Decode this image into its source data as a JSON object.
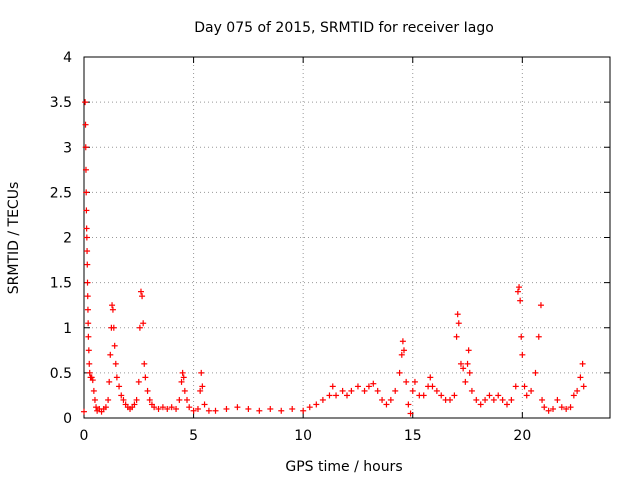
{
  "chart_data": {
    "type": "scatter",
    "title": "Day 075 of 2015, SRMTID for receiver Iago",
    "xlabel": "GPS time / hours",
    "ylabel": "SRMTID / TECUs",
    "xlim": [
      0,
      24
    ],
    "ylim": [
      0,
      4
    ],
    "x_ticks": [
      0,
      5,
      10,
      15,
      20
    ],
    "x_tick_labels": [
      "0",
      "5",
      "10",
      "15",
      "20"
    ],
    "y_ticks": [
      0,
      0.5,
      1,
      1.5,
      2,
      2.5,
      3,
      3.5,
      4
    ],
    "y_tick_labels": [
      "0",
      "0.5",
      "1",
      "1.5",
      "2",
      "2.5",
      "3",
      "3.5",
      "4"
    ],
    "grid": true,
    "marker": "+",
    "color": "#ff0000",
    "series": [
      {
        "name": "SRMTID",
        "points": [
          [
            0.0,
            0.07
          ],
          [
            0.05,
            3.5
          ],
          [
            0.07,
            3.25
          ],
          [
            0.08,
            3.0
          ],
          [
            0.09,
            2.75
          ],
          [
            0.1,
            2.5
          ],
          [
            0.11,
            2.3
          ],
          [
            0.12,
            2.1
          ],
          [
            0.13,
            2.0
          ],
          [
            0.14,
            1.85
          ],
          [
            0.15,
            1.7
          ],
          [
            0.16,
            1.5
          ],
          [
            0.17,
            1.35
          ],
          [
            0.18,
            1.2
          ],
          [
            0.19,
            1.05
          ],
          [
            0.2,
            0.9
          ],
          [
            0.22,
            0.75
          ],
          [
            0.24,
            0.6
          ],
          [
            0.26,
            0.5
          ],
          [
            0.3,
            0.45
          ],
          [
            0.35,
            0.45
          ],
          [
            0.4,
            0.42
          ],
          [
            0.45,
            0.3
          ],
          [
            0.5,
            0.2
          ],
          [
            0.55,
            0.12
          ],
          [
            0.6,
            0.08
          ],
          [
            0.7,
            0.1
          ],
          [
            0.8,
            0.07
          ],
          [
            0.9,
            0.1
          ],
          [
            1.0,
            0.12
          ],
          [
            1.1,
            0.2
          ],
          [
            1.15,
            0.4
          ],
          [
            1.2,
            0.7
          ],
          [
            1.25,
            1.0
          ],
          [
            1.28,
            1.25
          ],
          [
            1.32,
            1.2
          ],
          [
            1.36,
            1.0
          ],
          [
            1.4,
            0.8
          ],
          [
            1.45,
            0.6
          ],
          [
            1.5,
            0.45
          ],
          [
            1.6,
            0.35
          ],
          [
            1.7,
            0.25
          ],
          [
            1.8,
            0.2
          ],
          [
            1.9,
            0.15
          ],
          [
            2.0,
            0.12
          ],
          [
            2.1,
            0.1
          ],
          [
            2.2,
            0.12
          ],
          [
            2.3,
            0.15
          ],
          [
            2.4,
            0.2
          ],
          [
            2.5,
            0.4
          ],
          [
            2.55,
            1.0
          ],
          [
            2.6,
            1.4
          ],
          [
            2.65,
            1.35
          ],
          [
            2.7,
            1.05
          ],
          [
            2.75,
            0.6
          ],
          [
            2.8,
            0.45
          ],
          [
            2.9,
            0.3
          ],
          [
            3.0,
            0.2
          ],
          [
            3.1,
            0.15
          ],
          [
            3.2,
            0.12
          ],
          [
            3.4,
            0.1
          ],
          [
            3.6,
            0.12
          ],
          [
            3.8,
            0.1
          ],
          [
            4.0,
            0.12
          ],
          [
            4.2,
            0.1
          ],
          [
            4.35,
            0.2
          ],
          [
            4.45,
            0.4
          ],
          [
            4.5,
            0.5
          ],
          [
            4.55,
            0.45
          ],
          [
            4.6,
            0.3
          ],
          [
            4.7,
            0.2
          ],
          [
            4.8,
            0.12
          ],
          [
            5.0,
            0.08
          ],
          [
            5.2,
            0.1
          ],
          [
            5.3,
            0.3
          ],
          [
            5.35,
            0.5
          ],
          [
            5.4,
            0.35
          ],
          [
            5.5,
            0.15
          ],
          [
            5.7,
            0.08
          ],
          [
            6.0,
            0.08
          ],
          [
            6.5,
            0.1
          ],
          [
            7.0,
            0.12
          ],
          [
            7.5,
            0.1
          ],
          [
            8.0,
            0.08
          ],
          [
            8.5,
            0.1
          ],
          [
            9.0,
            0.08
          ],
          [
            9.5,
            0.1
          ],
          [
            10.0,
            0.08
          ],
          [
            10.3,
            0.12
          ],
          [
            10.6,
            0.15
          ],
          [
            10.9,
            0.2
          ],
          [
            11.2,
            0.25
          ],
          [
            11.35,
            0.35
          ],
          [
            11.5,
            0.25
          ],
          [
            11.8,
            0.3
          ],
          [
            12.0,
            0.25
          ],
          [
            12.2,
            0.3
          ],
          [
            12.5,
            0.35
          ],
          [
            12.8,
            0.3
          ],
          [
            13.0,
            0.35
          ],
          [
            13.2,
            0.38
          ],
          [
            13.4,
            0.3
          ],
          [
            13.6,
            0.2
          ],
          [
            13.8,
            0.15
          ],
          [
            14.0,
            0.2
          ],
          [
            14.2,
            0.3
          ],
          [
            14.4,
            0.5
          ],
          [
            14.5,
            0.7
          ],
          [
            14.55,
            0.85
          ],
          [
            14.6,
            0.75
          ],
          [
            14.7,
            0.4
          ],
          [
            14.8,
            0.15
          ],
          [
            14.9,
            0.05
          ],
          [
            15.0,
            0.3
          ],
          [
            15.1,
            0.4
          ],
          [
            15.3,
            0.25
          ],
          [
            15.5,
            0.25
          ],
          [
            15.7,
            0.35
          ],
          [
            15.8,
            0.45
          ],
          [
            15.9,
            0.35
          ],
          [
            16.1,
            0.3
          ],
          [
            16.3,
            0.25
          ],
          [
            16.5,
            0.2
          ],
          [
            16.7,
            0.2
          ],
          [
            16.9,
            0.25
          ],
          [
            17.0,
            0.9
          ],
          [
            17.05,
            1.15
          ],
          [
            17.1,
            1.05
          ],
          [
            17.2,
            0.6
          ],
          [
            17.3,
            0.55
          ],
          [
            17.4,
            0.4
          ],
          [
            17.5,
            0.6
          ],
          [
            17.55,
            0.75
          ],
          [
            17.6,
            0.5
          ],
          [
            17.7,
            0.3
          ],
          [
            17.9,
            0.2
          ],
          [
            18.1,
            0.15
          ],
          [
            18.3,
            0.2
          ],
          [
            18.5,
            0.25
          ],
          [
            18.7,
            0.2
          ],
          [
            18.9,
            0.25
          ],
          [
            19.1,
            0.2
          ],
          [
            19.3,
            0.15
          ],
          [
            19.5,
            0.2
          ],
          [
            19.7,
            0.35
          ],
          [
            19.8,
            1.4
          ],
          [
            19.85,
            1.45
          ],
          [
            19.9,
            1.3
          ],
          [
            19.95,
            0.9
          ],
          [
            20.0,
            0.7
          ],
          [
            20.1,
            0.35
          ],
          [
            20.2,
            0.25
          ],
          [
            20.4,
            0.3
          ],
          [
            20.6,
            0.5
          ],
          [
            20.75,
            0.9
          ],
          [
            20.85,
            1.25
          ],
          [
            20.9,
            0.2
          ],
          [
            21.0,
            0.12
          ],
          [
            21.2,
            0.08
          ],
          [
            21.4,
            0.1
          ],
          [
            21.6,
            0.2
          ],
          [
            21.8,
            0.12
          ],
          [
            22.0,
            0.1
          ],
          [
            22.2,
            0.12
          ],
          [
            22.35,
            0.25
          ],
          [
            22.5,
            0.3
          ],
          [
            22.65,
            0.45
          ],
          [
            22.75,
            0.6
          ],
          [
            22.8,
            0.35
          ]
        ]
      }
    ]
  }
}
